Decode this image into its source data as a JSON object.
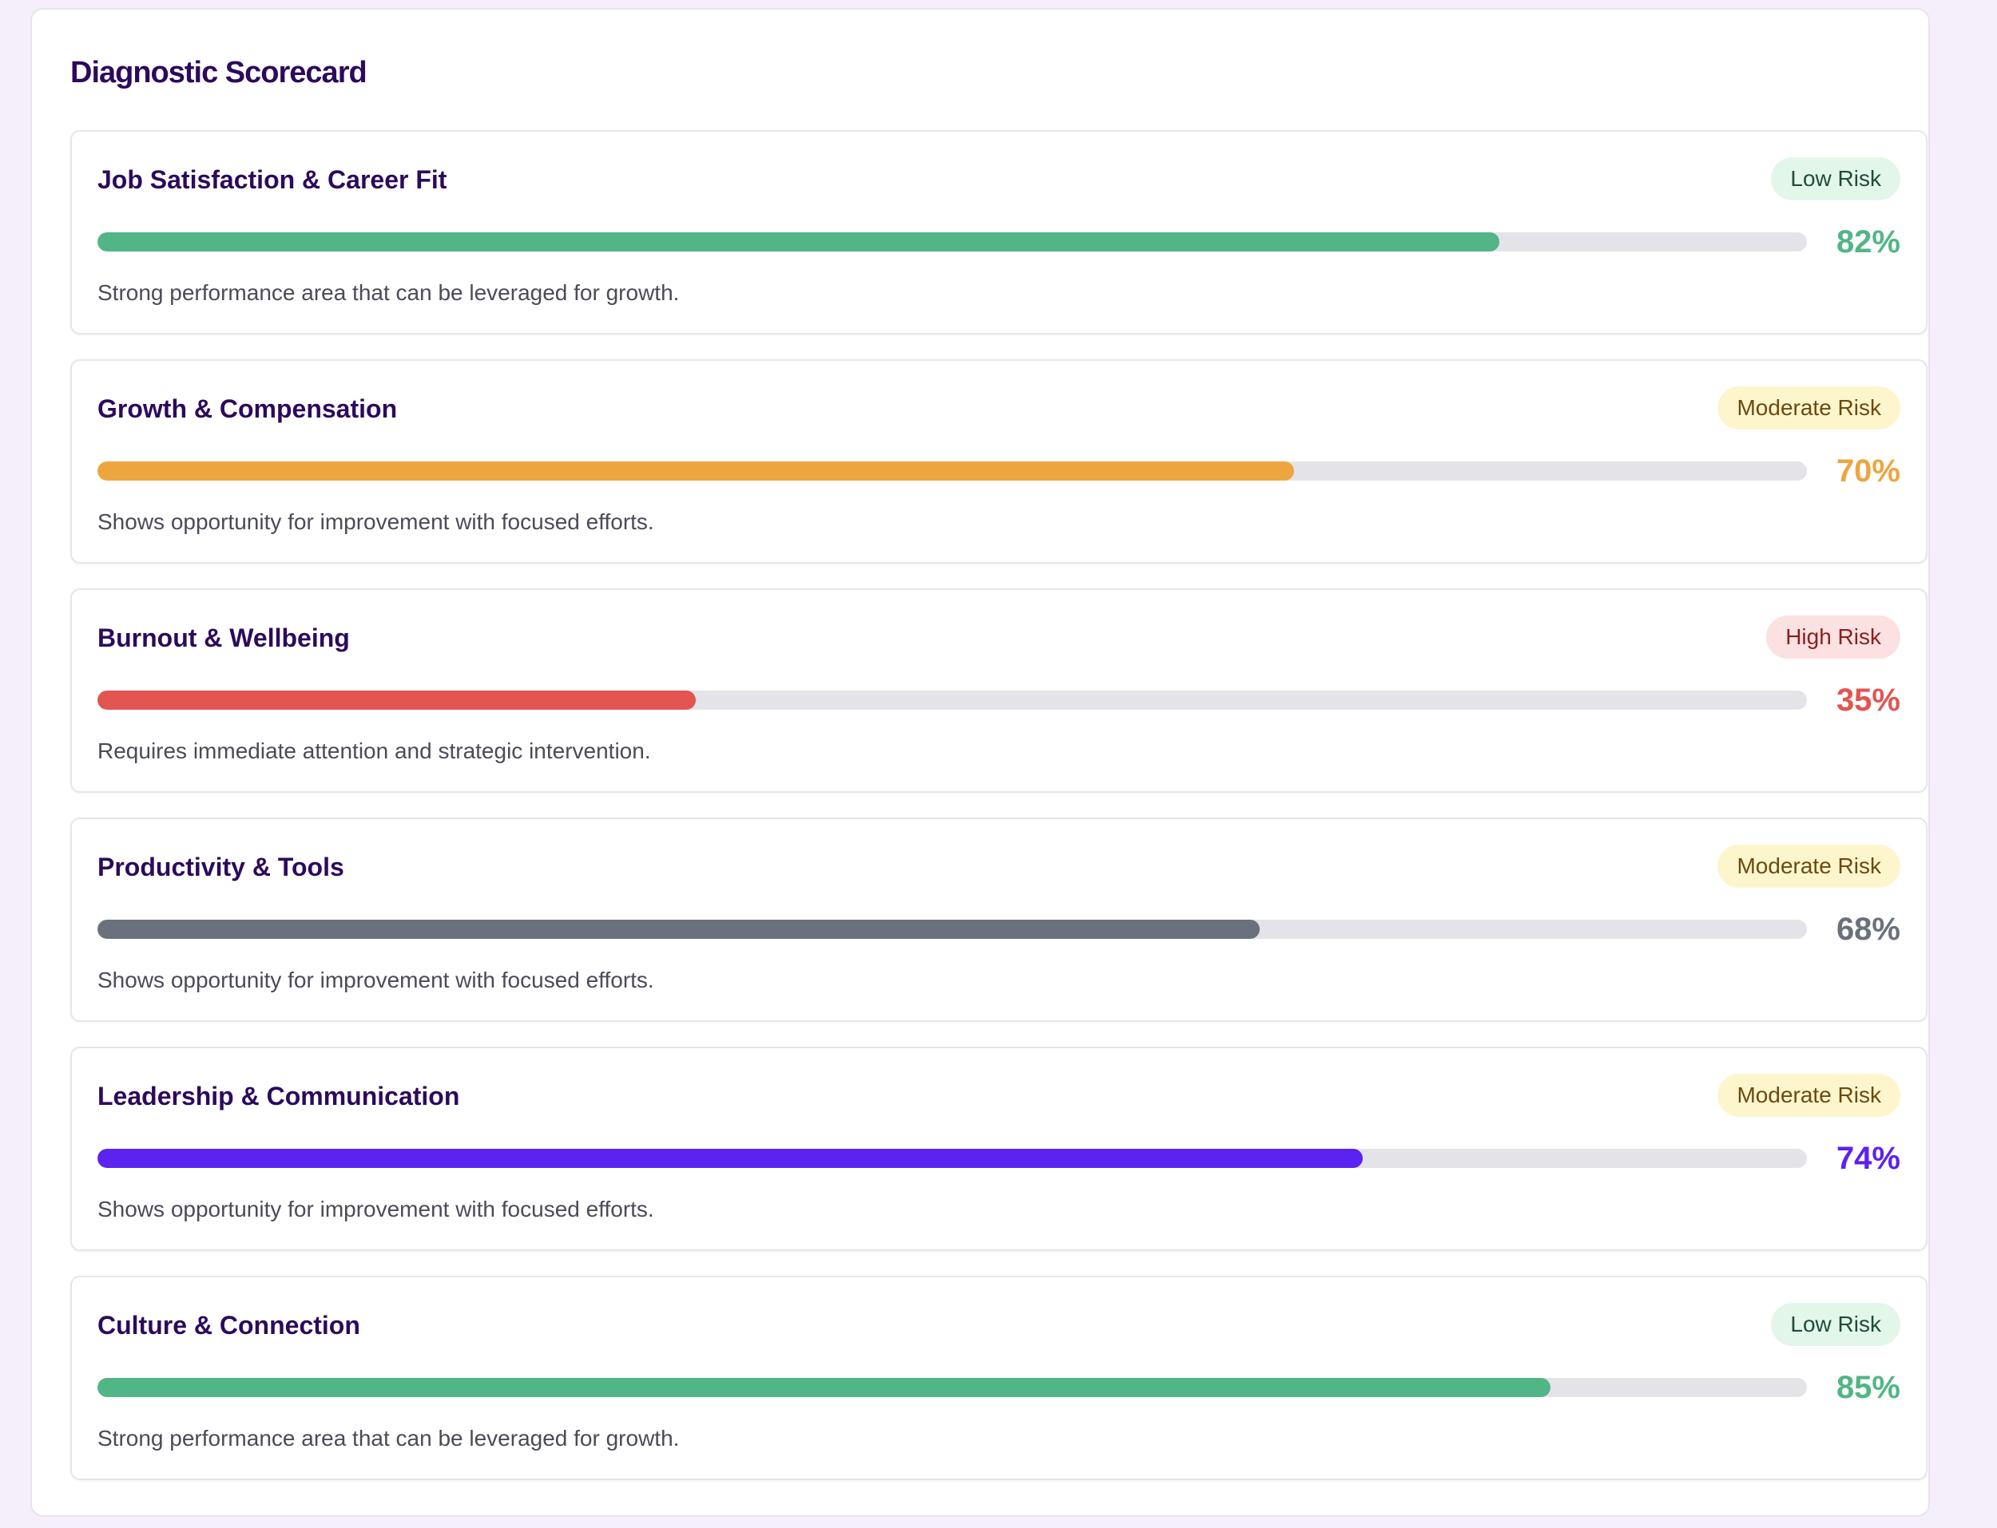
{
  "scorecard": {
    "title": "Diagnostic Scorecard"
  },
  "colors": {
    "green": "#52b585",
    "orange": "#eda540",
    "red": "#e25550",
    "gray": "#6b707d",
    "purple": "#5b22f0",
    "badge_low_bg": "#e3f6ea",
    "badge_low_text": "#1f4d33",
    "badge_moderate_bg": "#fdf6cd",
    "badge_moderate_text": "#6b4a12",
    "badge_high_bg": "#fbe1e1",
    "badge_high_text": "#8a1f1f"
  },
  "categories": [
    {
      "title": "Job Satisfaction & Career Fit",
      "badge": "Low Risk",
      "risk": "low",
      "score": 82,
      "score_label": "82%",
      "color": "#52b585",
      "description": "Strong performance area that can be leveraged for growth."
    },
    {
      "title": "Growth & Compensation",
      "badge": "Moderate Risk",
      "risk": "moderate",
      "score": 70,
      "score_label": "70%",
      "color": "#eda540",
      "description": "Shows opportunity for improvement with focused efforts."
    },
    {
      "title": "Burnout & Wellbeing",
      "badge": "High Risk",
      "risk": "high",
      "score": 35,
      "score_label": "35%",
      "color": "#e25550",
      "description": "Requires immediate attention and strategic intervention."
    },
    {
      "title": "Productivity & Tools",
      "badge": "Moderate Risk",
      "risk": "moderate",
      "score": 68,
      "score_label": "68%",
      "color": "#6b707d",
      "description": "Shows opportunity for improvement with focused efforts."
    },
    {
      "title": "Leadership & Communication",
      "badge": "Moderate Risk",
      "risk": "moderate",
      "score": 74,
      "score_label": "74%",
      "color": "#5b22f0",
      "description": "Shows opportunity for improvement with focused efforts."
    },
    {
      "title": "Culture & Connection",
      "badge": "Low Risk",
      "risk": "low",
      "score": 85,
      "score_label": "85%",
      "color": "#52b585",
      "description": "Strong performance area that can be leveraged for growth."
    }
  ]
}
